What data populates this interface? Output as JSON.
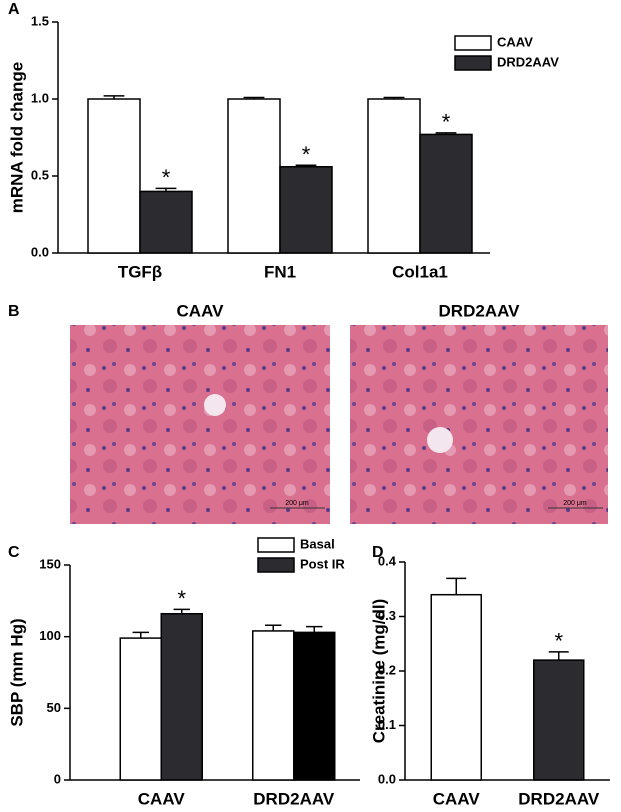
{
  "chart_data": [
    {
      "type": "bar",
      "label": "A",
      "ylabel": "mRNA fold change",
      "categories": [
        "TGFβ",
        "FN1",
        "Col1a1"
      ],
      "series": [
        {
          "name": "CAAV",
          "color": "#ffffff",
          "values": [
            1.0,
            1.0,
            1.0
          ],
          "errors": [
            0.02,
            0.01,
            0.01
          ]
        },
        {
          "name": "DRD2AAV",
          "color": "#2b2b30",
          "values": [
            0.4,
            0.56,
            0.77
          ],
          "errors": [
            0.02,
            0.01,
            0.01
          ],
          "annotations": [
            "*",
            "*",
            "*"
          ]
        }
      ],
      "ylim": [
        0,
        1.5
      ],
      "yticks": [
        {
          "value": 0,
          "label": "0.0"
        },
        {
          "value": 0.5,
          "label": "0.5"
        },
        {
          "value": 1,
          "label": "1.0"
        },
        {
          "value": 1.5,
          "label": "1.5"
        }
      ]
    },
    {
      "type": "bar",
      "label": "C",
      "ylabel": "SBP (mm Hg)",
      "categories": [
        "CAAV",
        "DRD2AAV"
      ],
      "series": [
        {
          "name": "Basal",
          "color": "#ffffff",
          "values": [
            99,
            104
          ],
          "errors": [
            4,
            4
          ]
        },
        {
          "name": "Post IR",
          "color": "#2b2b30",
          "colors": [
            "#2b2b30",
            "#000000"
          ],
          "values": [
            116,
            103
          ],
          "errors": [
            3,
            4
          ],
          "annotations": [
            "*",
            null
          ]
        }
      ],
      "ylim": [
        0,
        150
      ],
      "yticks": [
        0,
        50,
        100,
        150
      ]
    },
    {
      "type": "bar",
      "label": "D",
      "ylabel": "Creatinine (mg/dl)",
      "categories": [
        "CAAV",
        "DRD2AAV"
      ],
      "series": [
        {
          "colors": [
            "#ffffff",
            "#2b2b30"
          ],
          "values": [
            0.34,
            0.22
          ],
          "errors": [
            0.03,
            0.015
          ],
          "annotations": [
            null,
            "*"
          ]
        }
      ],
      "ylim": [
        0,
        0.4
      ],
      "yticks": [
        {
          "value": 0,
          "label": "0.0"
        },
        {
          "value": 0.1,
          "label": "0.1"
        },
        {
          "value": 0.2,
          "label": "0.2"
        },
        {
          "value": 0.3,
          "label": "0.3"
        },
        {
          "value": 0.4,
          "label": "0.4"
        }
      ]
    }
  ],
  "histology": {
    "label": "B",
    "images": [
      {
        "title": "CAAV",
        "scale": "200 μm"
      },
      {
        "title": "DRD2AAV",
        "scale": "200 μm"
      }
    ]
  }
}
